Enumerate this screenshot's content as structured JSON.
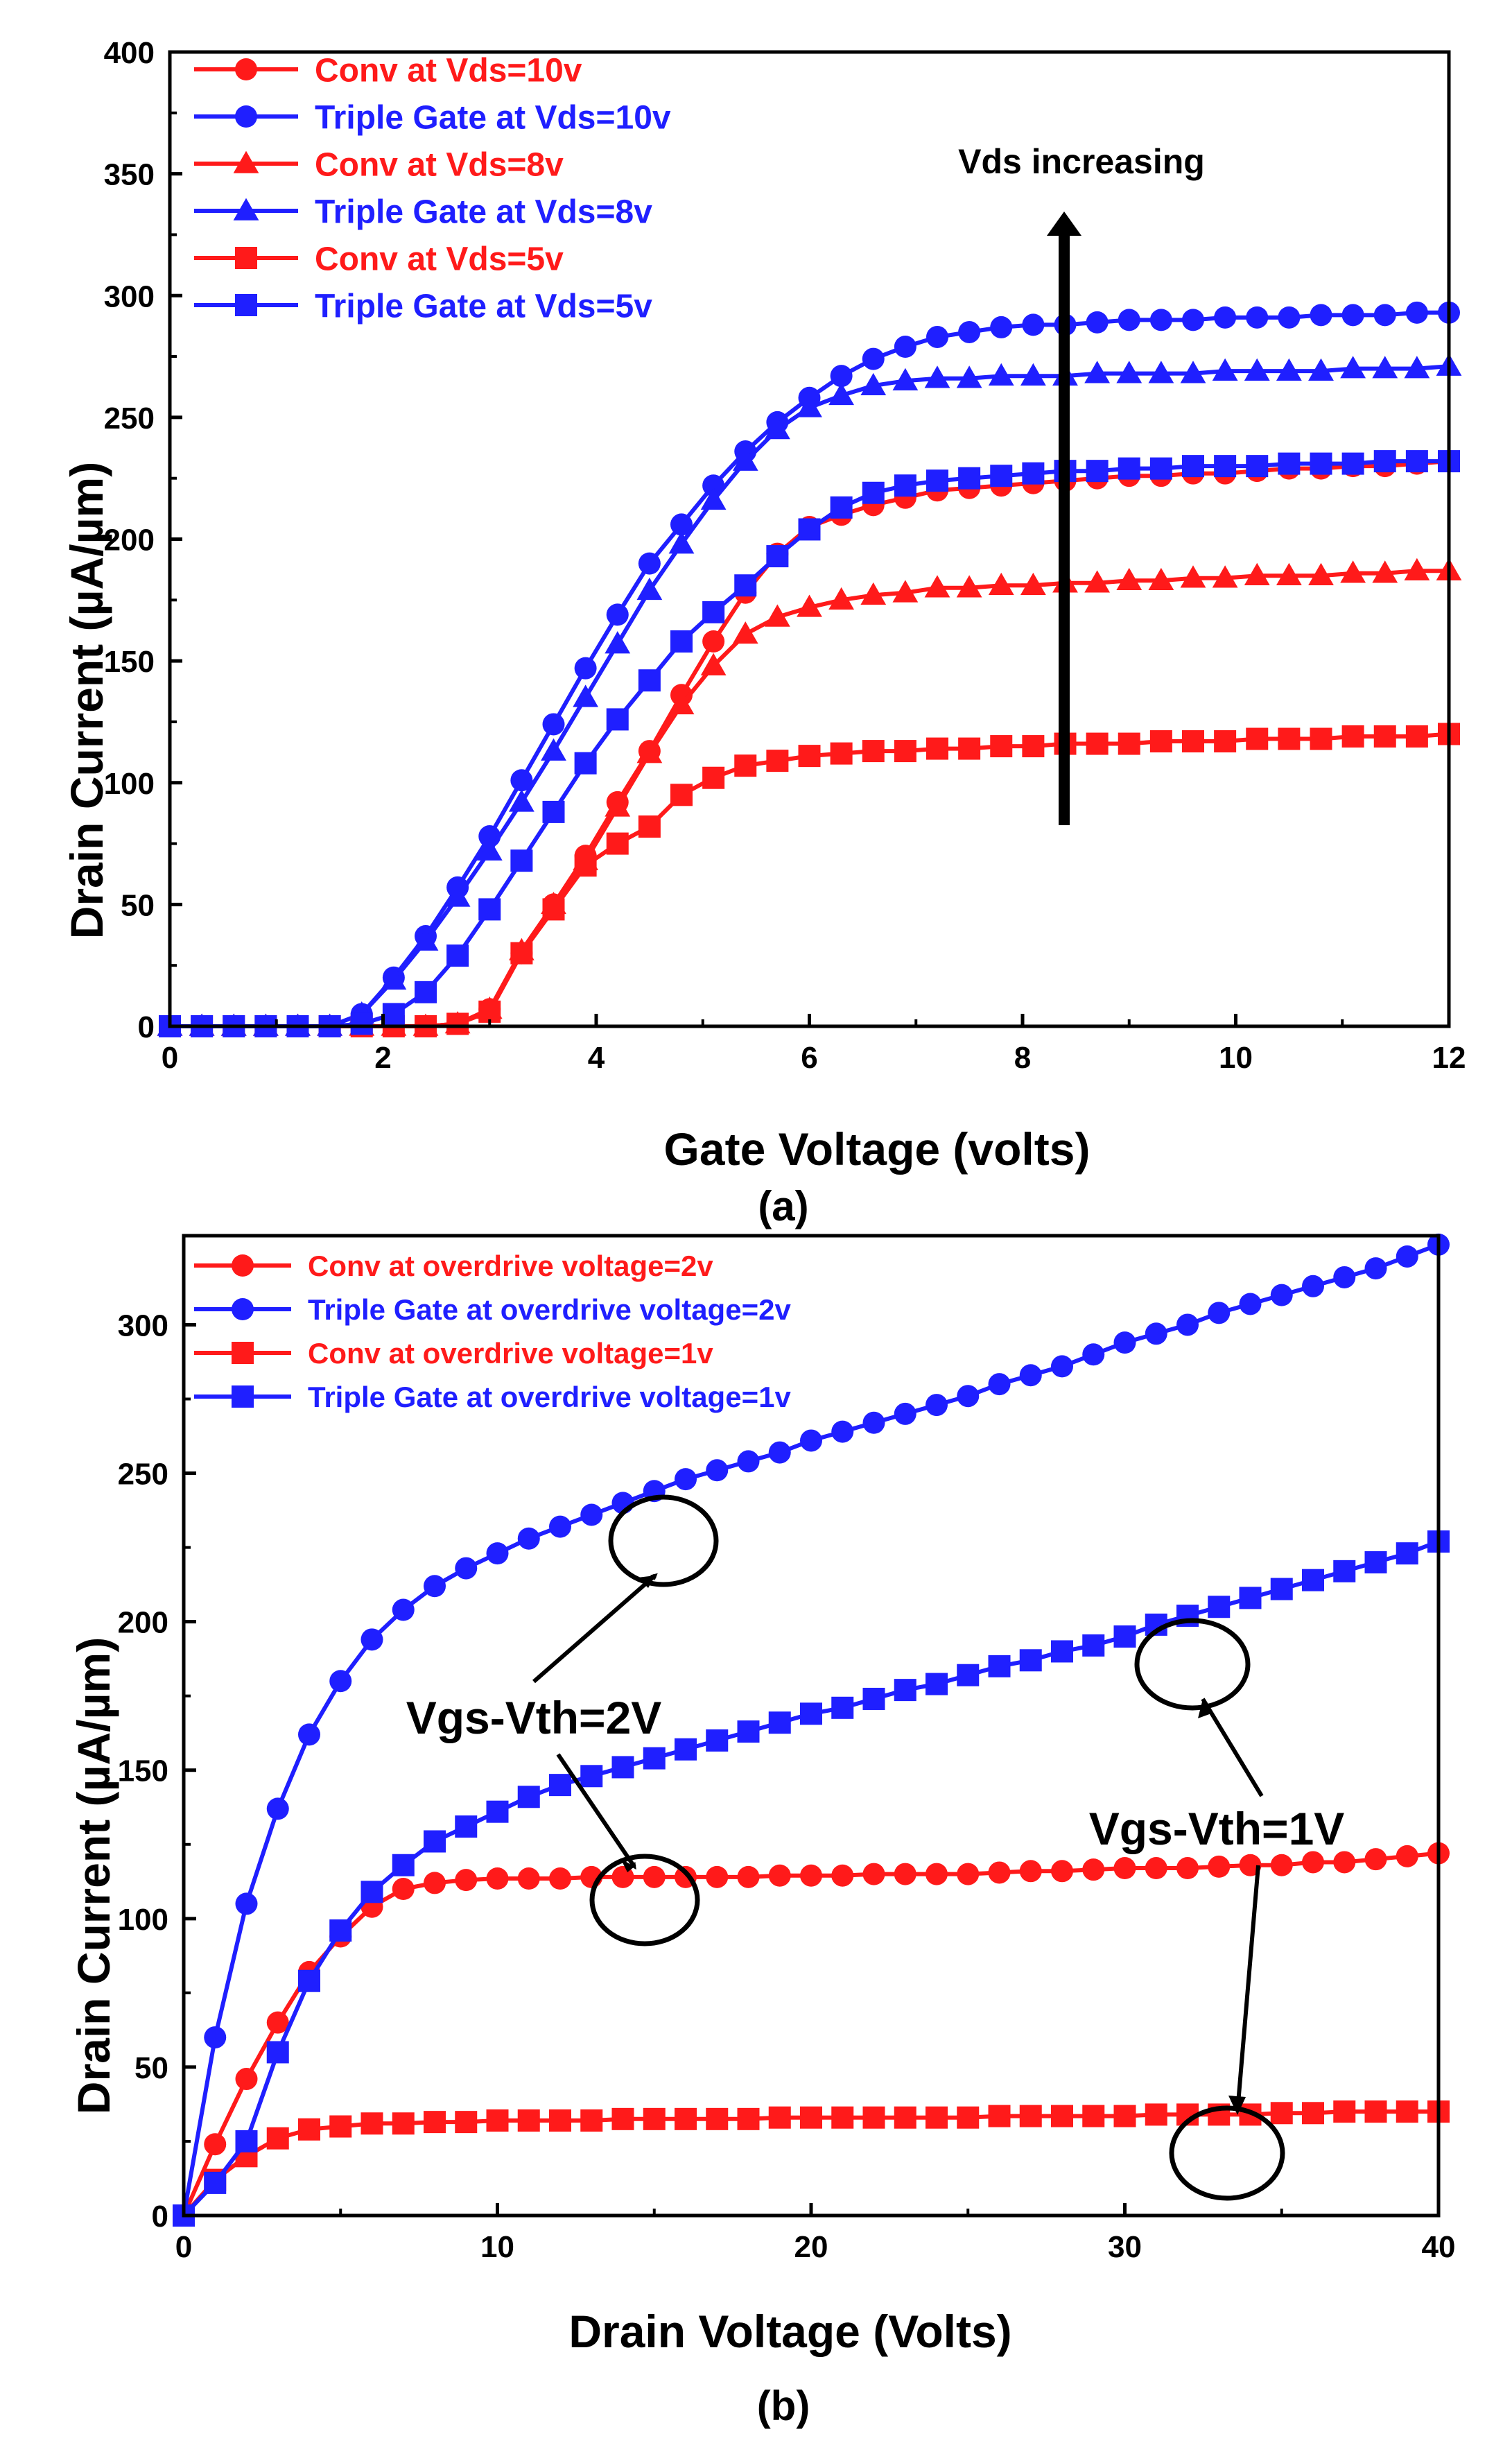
{
  "chart_data": [
    {
      "type": "line",
      "panel": "(a)",
      "xlabel": "Gate Voltage (volts)",
      "ylabel": "Drain Current (µA/µm)",
      "xlim": [
        0,
        12
      ],
      "ylim": [
        0,
        400
      ],
      "xticks": [
        "0",
        "2",
        "4",
        "6",
        "8",
        "10",
        "12"
      ],
      "yticks": [
        "0",
        "50",
        "100",
        "150",
        "200",
        "250",
        "300",
        "350",
        "400"
      ],
      "legend_position": "top-left",
      "annotation": "Vds increasing",
      "series": [
        {
          "name": "Conv at Vds=10v",
          "color": "#ff1a1a",
          "marker": "circle",
          "x": [
            0,
            0.3,
            0.6,
            0.9,
            1.2,
            1.5,
            1.8,
            2.1,
            2.4,
            2.7,
            3.0,
            3.3,
            3.6,
            3.9,
            4.2,
            4.5,
            4.8,
            5.1,
            5.4,
            5.7,
            6.0,
            6.3,
            6.6,
            6.9,
            7.2,
            7.5,
            7.8,
            8.1,
            8.4,
            8.7,
            9.0,
            9.3,
            9.6,
            9.9,
            10.2,
            10.5,
            10.8,
            11.1,
            11.4,
            11.7,
            12.0
          ],
          "y": [
            0,
            0,
            0,
            0,
            0,
            0,
            0,
            0,
            0,
            1,
            7,
            30,
            50,
            70,
            92,
            113,
            136,
            158,
            178,
            194,
            205,
            210,
            214,
            217,
            220,
            221,
            222,
            223,
            224,
            225,
            226,
            226,
            227,
            227,
            228,
            229,
            229,
            230,
            230,
            231,
            232
          ]
        },
        {
          "name": "Triple Gate at Vds=10v",
          "color": "#1f1fff",
          "marker": "circle",
          "x": [
            0,
            0.3,
            0.6,
            0.9,
            1.2,
            1.5,
            1.8,
            2.1,
            2.4,
            2.7,
            3.0,
            3.3,
            3.6,
            3.9,
            4.2,
            4.5,
            4.8,
            5.1,
            5.4,
            5.7,
            6.0,
            6.3,
            6.6,
            6.9,
            7.2,
            7.5,
            7.8,
            8.1,
            8.4,
            8.7,
            9.0,
            9.3,
            9.6,
            9.9,
            10.2,
            10.5,
            10.8,
            11.1,
            11.4,
            11.7,
            12.0
          ],
          "y": [
            0,
            0,
            0,
            0,
            0,
            0,
            5,
            20,
            37,
            57,
            78,
            101,
            124,
            147,
            169,
            190,
            206,
            222,
            236,
            248,
            258,
            267,
            274,
            279,
            283,
            285,
            287,
            288,
            288,
            289,
            290,
            290,
            290,
            291,
            291,
            291,
            292,
            292,
            292,
            293,
            293
          ]
        },
        {
          "name": "Conv at Vds=8v",
          "color": "#ff1a1a",
          "marker": "triangle",
          "x": [
            0,
            0.3,
            0.6,
            0.9,
            1.2,
            1.5,
            1.8,
            2.1,
            2.4,
            2.7,
            3.0,
            3.3,
            3.6,
            3.9,
            4.2,
            4.5,
            4.8,
            5.1,
            5.4,
            5.7,
            6.0,
            6.3,
            6.6,
            6.9,
            7.2,
            7.5,
            7.8,
            8.1,
            8.4,
            8.7,
            9.0,
            9.3,
            9.6,
            9.9,
            10.2,
            10.5,
            10.8,
            11.1,
            11.4,
            11.7,
            12.0
          ],
          "y": [
            0,
            0,
            0,
            0,
            0,
            0,
            0,
            0,
            0,
            1,
            7,
            31,
            50,
            68,
            90,
            112,
            132,
            148,
            161,
            168,
            172,
            175,
            177,
            178,
            180,
            180,
            181,
            181,
            182,
            182,
            183,
            183,
            184,
            184,
            185,
            185,
            185,
            186,
            186,
            187,
            187
          ]
        },
        {
          "name": "Triple Gate at Vds=8v",
          "color": "#1f1fff",
          "marker": "triangle",
          "x": [
            0,
            0.3,
            0.6,
            0.9,
            1.2,
            1.5,
            1.8,
            2.1,
            2.4,
            2.7,
            3.0,
            3.3,
            3.6,
            3.9,
            4.2,
            4.5,
            4.8,
            5.1,
            5.4,
            5.7,
            6.0,
            6.3,
            6.6,
            6.9,
            7.2,
            7.5,
            7.8,
            8.1,
            8.4,
            8.7,
            9.0,
            9.3,
            9.6,
            9.9,
            10.2,
            10.5,
            10.8,
            11.1,
            11.4,
            11.7,
            12.0
          ],
          "y": [
            0,
            0,
            0,
            0,
            0,
            0,
            5,
            19,
            35,
            53,
            72,
            92,
            113,
            135,
            157,
            179,
            198,
            216,
            232,
            245,
            254,
            259,
            263,
            265,
            266,
            266,
            267,
            267,
            267,
            268,
            268,
            268,
            268,
            269,
            269,
            269,
            269,
            270,
            270,
            270,
            271
          ]
        },
        {
          "name": "Conv at Vds=5v",
          "color": "#ff1a1a",
          "marker": "square",
          "x": [
            0,
            0.3,
            0.6,
            0.9,
            1.2,
            1.5,
            1.8,
            2.1,
            2.4,
            2.7,
            3.0,
            3.3,
            3.6,
            3.9,
            4.2,
            4.5,
            4.8,
            5.1,
            5.4,
            5.7,
            6.0,
            6.3,
            6.6,
            6.9,
            7.2,
            7.5,
            7.8,
            8.1,
            8.4,
            8.7,
            9.0,
            9.3,
            9.6,
            9.9,
            10.2,
            10.5,
            10.8,
            11.1,
            11.4,
            11.7,
            12.0
          ],
          "y": [
            0,
            0,
            0,
            0,
            0,
            0,
            0,
            0,
            0,
            1,
            6,
            30,
            48,
            66,
            75,
            82,
            95,
            102,
            107,
            109,
            111,
            112,
            113,
            113,
            114,
            114,
            115,
            115,
            116,
            116,
            116,
            117,
            117,
            117,
            118,
            118,
            118,
            119,
            119,
            119,
            120
          ]
        },
        {
          "name": "Triple Gate at Vds=5v",
          "color": "#1f1fff",
          "marker": "square",
          "x": [
            0,
            0.3,
            0.6,
            0.9,
            1.2,
            1.5,
            1.8,
            2.1,
            2.4,
            2.7,
            3.0,
            3.3,
            3.6,
            3.9,
            4.2,
            4.5,
            4.8,
            5.1,
            5.4,
            5.7,
            6.0,
            6.3,
            6.6,
            6.9,
            7.2,
            7.5,
            7.8,
            8.1,
            8.4,
            8.7,
            9.0,
            9.3,
            9.6,
            9.9,
            10.2,
            10.5,
            10.8,
            11.1,
            11.4,
            11.7,
            12.0
          ],
          "y": [
            0,
            0,
            0,
            0,
            0,
            0,
            1,
            5,
            14,
            29,
            48,
            68,
            88,
            108,
            126,
            142,
            158,
            170,
            181,
            193,
            204,
            213,
            219,
            222,
            224,
            225,
            226,
            227,
            228,
            228,
            229,
            229,
            230,
            230,
            230,
            231,
            231,
            231,
            232,
            232,
            232
          ]
        }
      ]
    },
    {
      "type": "line",
      "panel": "(b)",
      "xlabel": "Drain Voltage (Volts)",
      "ylabel": "Drain Current (µA/µm)",
      "xlim": [
        0,
        40
      ],
      "ylim": [
        0,
        330
      ],
      "xticks": [
        "0",
        "10",
        "20",
        "30",
        "40"
      ],
      "yticks": [
        "0",
        "50",
        "100",
        "150",
        "200",
        "250",
        "300"
      ],
      "legend_position": "top-left",
      "annotations": [
        {
          "text": "Vgs-Vth=2V"
        },
        {
          "text": "Vgs-Vth=1V"
        }
      ],
      "series": [
        {
          "name": "Conv at overdrive voltage=2v",
          "color": "#ff1a1a",
          "marker": "circle",
          "x": [
            0,
            1,
            2,
            3,
            4,
            5,
            6,
            7,
            8,
            9,
            10,
            11,
            12,
            13,
            14,
            15,
            16,
            17,
            18,
            19,
            20,
            21,
            22,
            23,
            24,
            25,
            26,
            27,
            28,
            29,
            30,
            31,
            32,
            33,
            34,
            35,
            36,
            37,
            38,
            39,
            40
          ],
          "y": [
            0,
            24,
            46,
            65,
            82,
            94,
            104,
            110,
            112,
            113,
            113.5,
            113.5,
            113.5,
            114,
            114,
            114,
            114,
            114,
            114,
            114.5,
            114.5,
            114.5,
            115,
            115,
            115,
            115,
            115.5,
            116,
            116,
            116.5,
            117,
            117,
            117,
            117.5,
            118,
            118,
            119,
            119,
            120,
            121,
            122
          ]
        },
        {
          "name": "Triple Gate at overdrive voltage=2v",
          "color": "#1f1fff",
          "marker": "circle",
          "x": [
            0,
            1,
            2,
            3,
            4,
            5,
            6,
            7,
            8,
            9,
            10,
            11,
            12,
            13,
            14,
            15,
            16,
            17,
            18,
            19,
            20,
            21,
            22,
            23,
            24,
            25,
            26,
            27,
            28,
            29,
            30,
            31,
            32,
            33,
            34,
            35,
            36,
            37,
            38,
            39,
            40
          ],
          "y": [
            0,
            60,
            105,
            137,
            162,
            180,
            194,
            204,
            212,
            218,
            223,
            228,
            232,
            236,
            240,
            244,
            248,
            251,
            254,
            257,
            261,
            264,
            267,
            270,
            273,
            276,
            280,
            283,
            286,
            290,
            294,
            297,
            300,
            304,
            307,
            310,
            313,
            316,
            319,
            323,
            327
          ]
        },
        {
          "name": "Conv at overdrive voltage=1v",
          "color": "#ff1a1a",
          "marker": "square",
          "x": [
            0,
            1,
            2,
            3,
            4,
            5,
            6,
            7,
            8,
            9,
            10,
            11,
            12,
            13,
            14,
            15,
            16,
            17,
            18,
            19,
            20,
            21,
            22,
            23,
            24,
            25,
            26,
            27,
            28,
            29,
            30,
            31,
            32,
            33,
            34,
            35,
            36,
            37,
            38,
            39,
            40
          ],
          "y": [
            0,
            12,
            20,
            26,
            29,
            30,
            31,
            31,
            31.5,
            31.5,
            32,
            32,
            32,
            32,
            32.5,
            32.5,
            32.5,
            32.5,
            32.5,
            33,
            33,
            33,
            33,
            33,
            33,
            33,
            33.5,
            33.5,
            33.5,
            33.5,
            33.5,
            34,
            34,
            34,
            34,
            34.5,
            34.5,
            35,
            35,
            35,
            35
          ]
        },
        {
          "name": "Triple Gate at overdrive voltage=1v",
          "color": "#1f1fff",
          "marker": "square",
          "x": [
            0,
            1,
            2,
            3,
            4,
            5,
            6,
            7,
            8,
            9,
            10,
            11,
            12,
            13,
            14,
            15,
            16,
            17,
            18,
            19,
            20,
            21,
            22,
            23,
            24,
            25,
            26,
            27,
            28,
            29,
            30,
            31,
            32,
            33,
            34,
            35,
            36,
            37,
            38,
            39,
            40
          ],
          "y": [
            0,
            11,
            25,
            55,
            79,
            96,
            109,
            118,
            126,
            131,
            136,
            141,
            145,
            148,
            151,
            154,
            157,
            160,
            163,
            166,
            169,
            171,
            174,
            177,
            179,
            182,
            185,
            187,
            190,
            192,
            195,
            199,
            202,
            205,
            208,
            211,
            214,
            217,
            220,
            223,
            227
          ]
        }
      ]
    }
  ]
}
